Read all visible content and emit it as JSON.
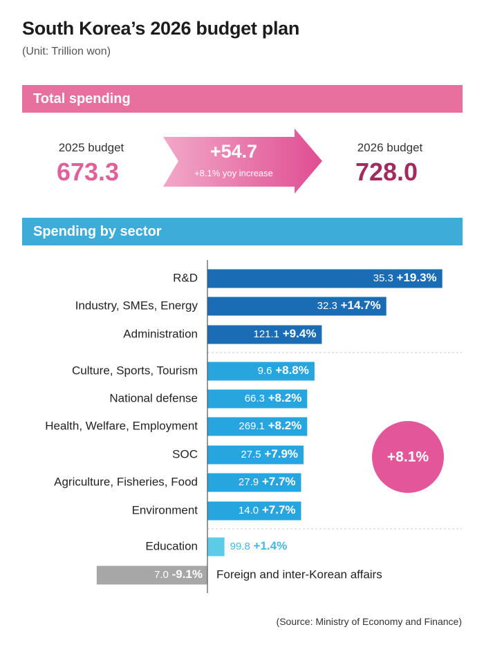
{
  "title": "South Korea’s 2026 budget plan",
  "unit": "(Unit: Trillion won)",
  "total": {
    "header": "Total spending",
    "budget_2025_label": "2025 budget",
    "budget_2025_value": "673.3",
    "increase": "+54.7",
    "increase_note": "+8.1% yoy increase",
    "budget_2026_label": "2026 budget",
    "budget_2026_value": "728.0"
  },
  "sector_header": "Spending by sector",
  "average_badge": "+8.1%",
  "source": "(Source: Ministry of Economy and Finance)",
  "colors": {
    "total_header": "#e8709f",
    "sector_header": "#3eacd9",
    "value_2025": "#e0609a",
    "value_2026": "#a12a5e",
    "bar_dark": "#1a6db4",
    "bar_mid": "#27a5df",
    "bar_light": "#5ccbe8",
    "bar_negative": "#a7a7a7",
    "badge": "#e4569a"
  },
  "chart_data": {
    "type": "bar",
    "orientation": "horizontal",
    "title": "Spending by sector",
    "unit": "Trillion won",
    "series": [
      {
        "name": "2026 budget (trillion won)",
        "values": [
          35.3,
          32.3,
          121.1,
          9.6,
          66.3,
          269.1,
          27.5,
          27.9,
          14.0,
          99.8,
          7.0
        ]
      },
      {
        "name": "yoy change (%)",
        "values": [
          19.3,
          14.7,
          9.4,
          8.8,
          8.2,
          8.2,
          7.9,
          7.7,
          7.7,
          1.4,
          -9.1
        ]
      }
    ],
    "categories": [
      "R&D",
      "Industry, SMEs, Energy",
      "Administration",
      "Culture, Sports, Tourism",
      "National defense",
      "Health, Welfare, Employment",
      "SOC",
      "Agriculture, Fisheries, Food",
      "Environment",
      "Education",
      "Foreign and inter-Korean affairs"
    ],
    "value_labels": [
      "35.3",
      "32.3",
      "121.1",
      "9.6",
      "66.3",
      "269.1",
      "27.5",
      "27.9",
      "14.0",
      "99.8",
      "7.0"
    ],
    "change_labels": [
      "+19.3%",
      "+14.7%",
      "+9.4%",
      "+8.8%",
      "+8.2%",
      "+8.2%",
      "+7.9%",
      "+7.7%",
      "+7.7%",
      "+1.4%",
      "-9.1%"
    ],
    "groups": [
      "dark",
      "dark",
      "dark",
      "mid",
      "mid",
      "mid",
      "mid",
      "mid",
      "mid",
      "light",
      "negative"
    ],
    "bar_length_encodes": "yoy change (%)",
    "grid": false,
    "legend": "none"
  }
}
